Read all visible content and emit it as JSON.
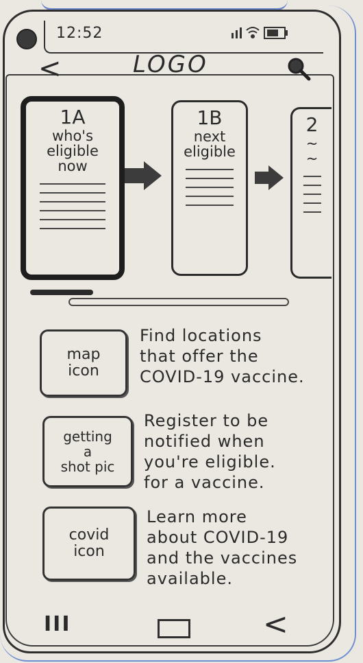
{
  "status_bar": {
    "time": "12:52",
    "icons": [
      "signal-icon",
      "wifi-icon",
      "battery-icon"
    ]
  },
  "header": {
    "back_label": "<",
    "logo": "LOGO",
    "search_icon": "search-icon"
  },
  "carousel": {
    "cards": [
      {
        "title": "1A",
        "subtitle": [
          "who's",
          "eligible",
          "now"
        ],
        "active": true
      },
      {
        "title": "1B",
        "subtitle": [
          "next",
          "eligible"
        ],
        "active": false
      },
      {
        "title": "2",
        "subtitle": [
          "~",
          "~"
        ],
        "active": false
      }
    ]
  },
  "features": [
    {
      "icon_label": [
        "map",
        "icon"
      ],
      "text": [
        "Find locations",
        "that offer the",
        "COVID-19 vaccine."
      ]
    },
    {
      "icon_label": [
        "getting",
        "a",
        "shot pic"
      ],
      "text": [
        "Register to be",
        "notified when",
        "you're eligible.",
        "for a vaccine."
      ]
    },
    {
      "icon_label": [
        "covid",
        "icon"
      ],
      "text": [
        "Learn more",
        "about COVID-19",
        "and the vaccines",
        "available."
      ]
    }
  ],
  "nav": {
    "recent_label": "III",
    "back_label": "<"
  }
}
